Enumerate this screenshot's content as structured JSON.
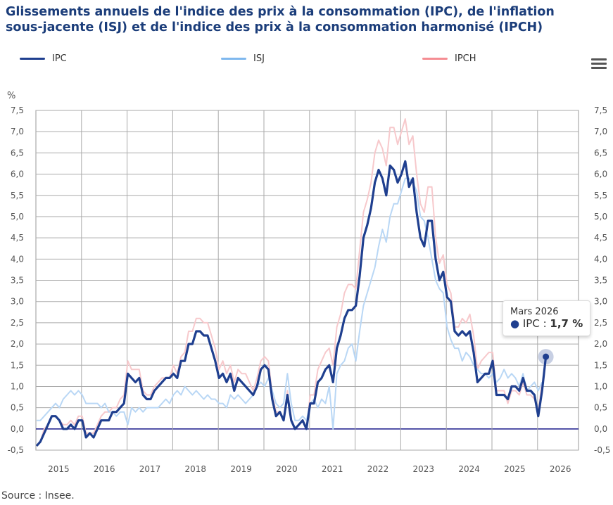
{
  "title": "Glissements annuels de l'indice des prix à la consommation (IPC), de l'inflation sous-jacente (ISJ) et de l'indice des prix à la consommation harmonisé (IPCH)",
  "source": "Source : Insee.",
  "menu_icon": "hamburger-menu-icon",
  "tooltip": {
    "date": "Mars 2026",
    "series": "IPC",
    "separator": " : ",
    "value": "1,7 %"
  },
  "chart_data": {
    "type": "line",
    "title": "Glissements annuels de l'indice des prix à la consommation (IPC), de l'inflation sous-jacente (ISJ) et de l'indice des prix à la consommation harmonisé (IPCH)",
    "ylabel": "%",
    "ylim": [
      -0.5,
      7.5
    ],
    "yticks": [
      "7,5",
      "7,0",
      "6,5",
      "6,0",
      "5,5",
      "5,0",
      "4,5",
      "4,0",
      "3,5",
      "3,0",
      "2,5",
      "2,0",
      "1,5",
      "1,0",
      "0,5",
      "0,0",
      "-0,5"
    ],
    "xticks": [
      "2015",
      "2016",
      "2017",
      "2018",
      "2019",
      "2020",
      "2021",
      "2022",
      "2023",
      "2024",
      "2025",
      "2026"
    ],
    "x_start": "2015-01",
    "x_frequency": "monthly",
    "grid": true,
    "legend": "top",
    "series": [
      {
        "name": "IPC",
        "color": "#1f3f8f",
        "values": [
          -0.4,
          -0.3,
          -0.1,
          0.1,
          0.3,
          0.3,
          0.2,
          0.0,
          0.0,
          0.1,
          0.0,
          0.2,
          0.2,
          -0.2,
          -0.1,
          -0.2,
          0.0,
          0.2,
          0.2,
          0.2,
          0.4,
          0.4,
          0.5,
          0.6,
          1.3,
          1.2,
          1.1,
          1.2,
          0.8,
          0.7,
          0.7,
          0.9,
          1.0,
          1.1,
          1.2,
          1.2,
          1.3,
          1.2,
          1.6,
          1.6,
          2.0,
          2.0,
          2.3,
          2.3,
          2.2,
          2.2,
          1.9,
          1.6,
          1.2,
          1.3,
          1.1,
          1.3,
          0.9,
          1.2,
          1.1,
          1.0,
          0.9,
          0.8,
          1.0,
          1.4,
          1.5,
          1.4,
          0.7,
          0.3,
          0.4,
          0.2,
          0.8,
          0.2,
          0.0,
          0.1,
          0.2,
          0.0,
          0.6,
          0.6,
          1.1,
          1.2,
          1.4,
          1.5,
          1.1,
          1.9,
          2.2,
          2.6,
          2.8,
          2.8,
          2.9,
          3.6,
          4.5,
          4.8,
          5.2,
          5.8,
          6.1,
          5.9,
          5.5,
          6.2,
          6.1,
          5.8,
          6.0,
          6.3,
          5.7,
          5.9,
          5.1,
          4.5,
          4.3,
          4.9,
          4.9,
          4.0,
          3.5,
          3.7,
          3.1,
          3.0,
          2.3,
          2.2,
          2.3,
          2.2,
          2.3,
          1.8,
          1.1,
          1.2,
          1.3,
          1.3,
          1.6,
          0.8,
          0.8,
          0.8,
          0.7,
          1.0,
          1.0,
          0.9,
          1.2,
          0.9,
          0.9,
          0.8,
          0.3,
          0.9,
          1.7
        ]
      },
      {
        "name": "ISJ",
        "color": "#b9d7f5",
        "values": [
          0.2,
          0.2,
          0.3,
          0.4,
          0.5,
          0.6,
          0.5,
          0.7,
          0.8,
          0.9,
          0.8,
          0.9,
          0.8,
          0.6,
          0.6,
          0.6,
          0.6,
          0.5,
          0.6,
          0.4,
          0.4,
          0.3,
          0.4,
          0.4,
          0.1,
          0.5,
          0.4,
          0.5,
          0.4,
          0.5,
          0.5,
          0.5,
          0.5,
          0.6,
          0.7,
          0.6,
          0.8,
          0.9,
          0.8,
          1.0,
          0.9,
          0.8,
          0.9,
          0.8,
          0.7,
          0.8,
          0.7,
          0.7,
          0.6,
          0.6,
          0.5,
          0.8,
          0.7,
          0.8,
          0.7,
          0.6,
          0.7,
          0.8,
          1.0,
          1.1,
          1.0,
          1.2,
          0.9,
          0.6,
          0.5,
          0.6,
          1.3,
          0.6,
          0.2,
          0.2,
          0.3,
          0.2,
          0.6,
          0.7,
          0.5,
          0.7,
          0.6,
          1.0,
          0.0,
          1.3,
          1.5,
          1.6,
          1.9,
          2.0,
          1.6,
          2.3,
          2.9,
          3.2,
          3.5,
          3.8,
          4.3,
          4.7,
          4.4,
          5.0,
          5.3,
          5.3,
          5.6,
          5.9,
          5.9,
          5.8,
          5.6,
          5.0,
          4.9,
          4.5,
          4.0,
          3.5,
          3.3,
          3.2,
          2.4,
          2.1,
          1.9,
          1.9,
          1.6,
          1.8,
          1.7,
          1.5,
          1.4,
          1.3,
          1.3,
          1.2,
          1.3,
          1.1,
          1.2,
          1.4,
          1.2,
          1.3,
          1.2,
          1.0,
          1.3,
          0.9,
          1.0,
          1.1,
          0.9,
          1.1
        ]
      },
      {
        "name": "IPCH",
        "color": "#f7c9cc",
        "values": [
          -0.4,
          -0.3,
          0.0,
          0.1,
          0.3,
          0.3,
          0.2,
          0.1,
          0.1,
          0.2,
          0.1,
          0.3,
          0.3,
          -0.1,
          -0.1,
          -0.1,
          0.1,
          0.3,
          0.4,
          0.4,
          0.5,
          0.5,
          0.7,
          0.8,
          1.6,
          1.4,
          1.4,
          1.4,
          0.9,
          0.8,
          0.8,
          1.0,
          1.1,
          1.2,
          1.2,
          1.2,
          1.5,
          1.3,
          1.7,
          1.8,
          2.3,
          2.3,
          2.6,
          2.6,
          2.5,
          2.5,
          2.2,
          1.9,
          1.4,
          1.6,
          1.3,
          1.5,
          1.1,
          1.4,
          1.3,
          1.3,
          1.1,
          0.9,
          1.2,
          1.6,
          1.7,
          1.6,
          0.8,
          0.4,
          0.4,
          0.2,
          0.9,
          0.2,
          0.0,
          0.1,
          0.2,
          0.0,
          0.8,
          0.8,
          1.4,
          1.6,
          1.8,
          1.9,
          1.5,
          2.4,
          2.7,
          3.2,
          3.4,
          3.4,
          3.3,
          4.2,
          5.1,
          5.4,
          5.8,
          6.5,
          6.8,
          6.6,
          6.2,
          7.1,
          7.1,
          6.7,
          7.0,
          7.3,
          6.7,
          6.9,
          6.0,
          5.3,
          5.1,
          5.7,
          5.7,
          4.5,
          3.9,
          4.1,
          3.4,
          3.2,
          2.4,
          2.4,
          2.6,
          2.5,
          2.7,
          2.2,
          1.4,
          1.6,
          1.7,
          1.8,
          1.8,
          0.9,
          0.9,
          0.9,
          0.6,
          0.9,
          0.9,
          0.8,
          1.1,
          0.8,
          0.8,
          0.7,
          0.4,
          1.1
        ]
      }
    ]
  }
}
